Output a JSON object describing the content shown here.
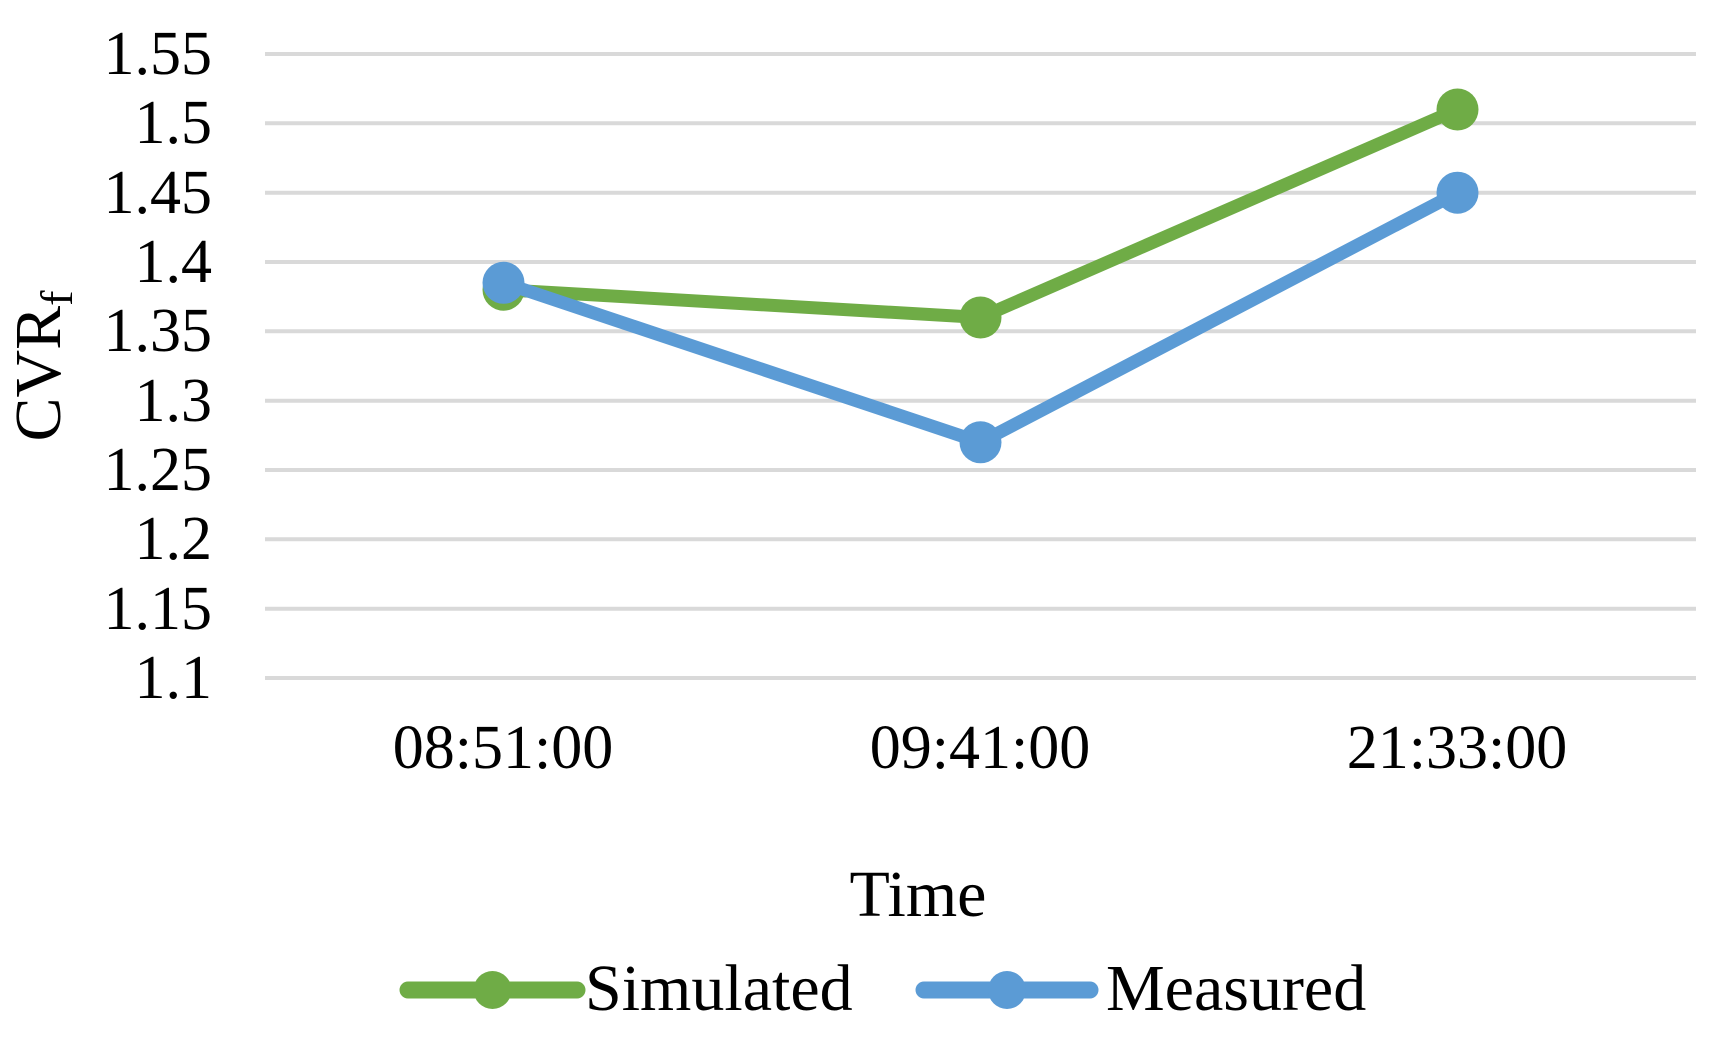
{
  "chart_data": {
    "type": "line",
    "title": "",
    "xlabel": "Time",
    "ylabel": "CVR",
    "ylabel_subscript": "f",
    "categories": [
      "08:51:00",
      "09:41:00",
      "21:33:00"
    ],
    "series": [
      {
        "name": "Simulated",
        "color": "#6FAC46",
        "values": [
          1.38,
          1.36,
          1.51
        ]
      },
      {
        "name": "Measured",
        "color": "#5B9BD5",
        "values": [
          1.385,
          1.27,
          1.45
        ]
      }
    ],
    "y_axis": {
      "min": 1.1,
      "max": 1.55,
      "step": 0.05,
      "tick_labels_top_to_bottom": [
        "1.55",
        "1.5",
        "1.45",
        "1.4",
        "1.35",
        "1.3",
        "1.25",
        "1.2",
        "1.15",
        "1.1"
      ]
    },
    "grid": true,
    "gridline_color": "#D9D9D9",
    "text_color": "#000000",
    "legend_position": "bottom",
    "marker": "circle"
  }
}
